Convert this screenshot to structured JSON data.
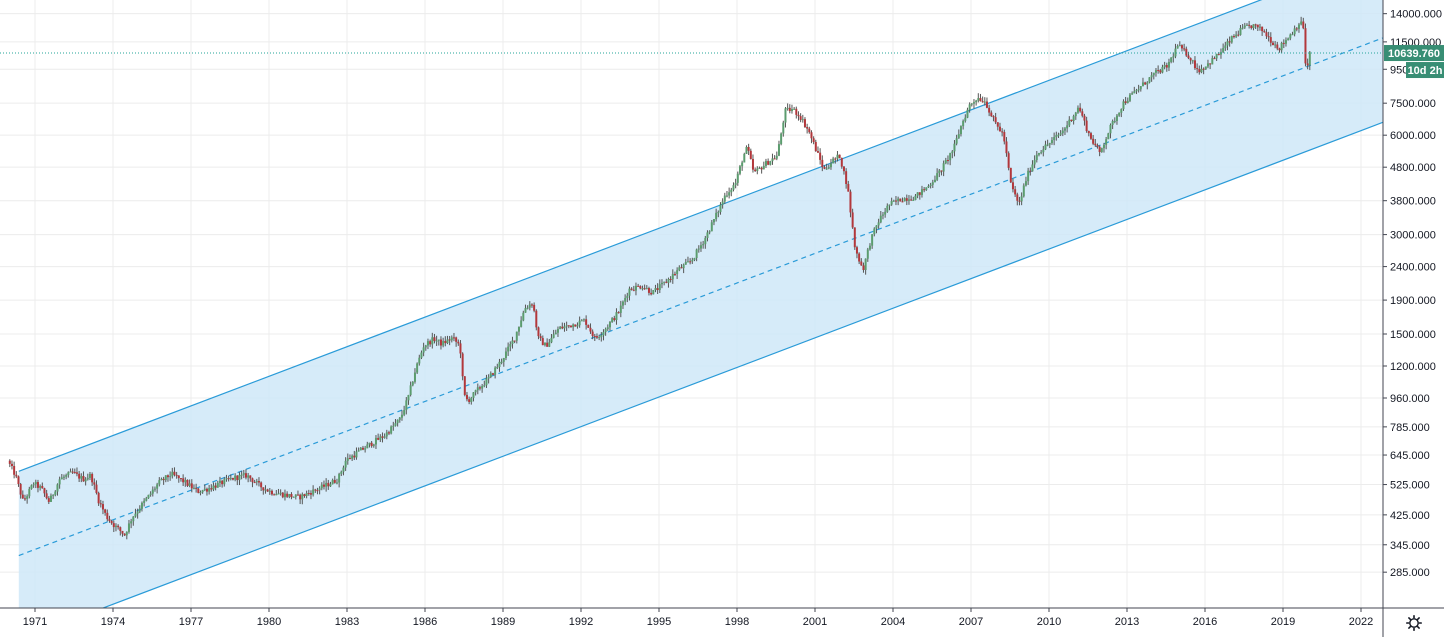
{
  "chart_data": {
    "type": "candlestick",
    "y_scale": "log",
    "ylim": [
      230,
      14500
    ],
    "xlim": [
      1970.3,
      2023.5
    ],
    "y_ticks": [
      {
        "value": 14000,
        "label": "14000.000"
      },
      {
        "value": 11500,
        "label": "11500.000"
      },
      {
        "value": 9500,
        "label": "9500.000"
      },
      {
        "value": 7500,
        "label": "7500.000"
      },
      {
        "value": 6000,
        "label": "6000.000"
      },
      {
        "value": 4800,
        "label": "4800.000"
      },
      {
        "value": 3800,
        "label": "3800.000"
      },
      {
        "value": 3000,
        "label": "3000.000"
      },
      {
        "value": 2400,
        "label": "2400.000"
      },
      {
        "value": 1900,
        "label": "1900.000"
      },
      {
        "value": 1500,
        "label": "1500.000"
      },
      {
        "value": 1200,
        "label": "1200.000"
      },
      {
        "value": 960,
        "label": "960.000"
      },
      {
        "value": 785,
        "label": "785.000"
      },
      {
        "value": 645,
        "label": "645.000"
      },
      {
        "value": 525,
        "label": "525.000"
      },
      {
        "value": 425,
        "label": "425.000"
      },
      {
        "value": 345,
        "label": "345.000"
      },
      {
        "value": 285,
        "label": "285.000"
      }
    ],
    "x_ticks": [
      {
        "value": 1971,
        "label": "1971"
      },
      {
        "value": 1974,
        "label": "1974"
      },
      {
        "value": 1977,
        "label": "1977"
      },
      {
        "value": 1980,
        "label": "1980"
      },
      {
        "value": 1983,
        "label": "1983"
      },
      {
        "value": 1986,
        "label": "1986"
      },
      {
        "value": 1989,
        "label": "1989"
      },
      {
        "value": 1992,
        "label": "1992"
      },
      {
        "value": 1995,
        "label": "1995"
      },
      {
        "value": 1998,
        "label": "1998"
      },
      {
        "value": 2001,
        "label": "2001"
      },
      {
        "value": 2004,
        "label": "2004"
      },
      {
        "value": 2007,
        "label": "2007"
      },
      {
        "value": 2010,
        "label": "2010"
      },
      {
        "value": 2013,
        "label": "2013"
      },
      {
        "value": 2016,
        "label": "2016"
      },
      {
        "value": 2019,
        "label": "2019"
      },
      {
        "value": 2022,
        "label": "2022"
      }
    ],
    "price_path": [
      [
        1970.3,
        620
      ],
      [
        1970.6,
        560
      ],
      [
        1970.9,
        465
      ],
      [
        1971.3,
        530
      ],
      [
        1971.6,
        510
      ],
      [
        1971.9,
        465
      ],
      [
        1972.3,
        545
      ],
      [
        1972.8,
        570
      ],
      [
        1973.2,
        545
      ],
      [
        1973.5,
        560
      ],
      [
        1973.8,
        470
      ],
      [
        1974.1,
        420
      ],
      [
        1974.4,
        395
      ],
      [
        1974.8,
        370
      ],
      [
        1975.1,
        420
      ],
      [
        1975.6,
        470
      ],
      [
        1976.1,
        530
      ],
      [
        1976.6,
        565
      ],
      [
        1977.1,
        535
      ],
      [
        1977.6,
        500
      ],
      [
        1978.0,
        510
      ],
      [
        1978.5,
        530
      ],
      [
        1979.0,
        550
      ],
      [
        1979.5,
        560
      ],
      [
        1980.0,
        520
      ],
      [
        1980.4,
        500
      ],
      [
        1980.9,
        490
      ],
      [
        1981.5,
        480
      ],
      [
        1982.0,
        500
      ],
      [
        1982.5,
        520
      ],
      [
        1983.0,
        545
      ],
      [
        1983.3,
        620
      ],
      [
        1983.8,
        660
      ],
      [
        1984.3,
        700
      ],
      [
        1984.8,
        740
      ],
      [
        1985.4,
        830
      ],
      [
        1985.7,
        960
      ],
      [
        1986.0,
        1180
      ],
      [
        1986.3,
        1380
      ],
      [
        1986.7,
        1450
      ],
      [
        1987.0,
        1400
      ],
      [
        1987.4,
        1460
      ],
      [
        1987.7,
        1380
      ],
      [
        1987.85,
        980
      ],
      [
        1988.0,
        940
      ],
      [
        1988.4,
        1020
      ],
      [
        1988.8,
        1100
      ],
      [
        1989.3,
        1250
      ],
      [
        1989.8,
        1460
      ],
      [
        1990.2,
        1800
      ],
      [
        1990.5,
        1870
      ],
      [
        1990.7,
        1460
      ],
      [
        1991.0,
        1380
      ],
      [
        1991.5,
        1560
      ],
      [
        1992.0,
        1600
      ],
      [
        1992.5,
        1650
      ],
      [
        1992.9,
        1450
      ],
      [
        1993.3,
        1560
      ],
      [
        1993.8,
        1750
      ],
      [
        1994.2,
        2050
      ],
      [
        1994.7,
        2100
      ],
      [
        1995.1,
        2000
      ],
      [
        1995.6,
        2150
      ],
      [
        1996.1,
        2350
      ],
      [
        1996.6,
        2500
      ],
      [
        1997.1,
        2900
      ],
      [
        1997.6,
        3500
      ],
      [
        1997.9,
        3950
      ],
      [
        1998.3,
        4300
      ],
      [
        1998.6,
        5200
      ],
      [
        1998.75,
        5500
      ],
      [
        1999.0,
        4600
      ],
      [
        1999.5,
        4950
      ],
      [
        1999.9,
        5200
      ],
      [
        2000.2,
        7100
      ],
      [
        2000.5,
        7200
      ],
      [
        2000.8,
        6800
      ],
      [
        2001.1,
        6200
      ],
      [
        2001.4,
        5400
      ],
      [
        2001.7,
        4700
      ],
      [
        2002.0,
        5000
      ],
      [
        2002.3,
        5200
      ],
      [
        2002.6,
        4200
      ],
      [
        2002.9,
        2700
      ],
      [
        2003.2,
        2350
      ],
      [
        2003.5,
        2900
      ],
      [
        2003.8,
        3300
      ],
      [
        2004.2,
        3700
      ],
      [
        2004.7,
        3850
      ],
      [
        2005.2,
        3900
      ],
      [
        2005.7,
        4200
      ],
      [
        2006.2,
        4700
      ],
      [
        2006.7,
        5500
      ],
      [
        2007.0,
        6500
      ],
      [
        2007.3,
        7400
      ],
      [
        2007.6,
        7800
      ],
      [
        2007.9,
        7600
      ],
      [
        2008.2,
        6700
      ],
      [
        2008.6,
        6000
      ],
      [
        2008.9,
        4200
      ],
      [
        2009.2,
        3700
      ],
      [
        2009.5,
        4500
      ],
      [
        2009.9,
        5300
      ],
      [
        2010.4,
        5700
      ],
      [
        2010.9,
        6200
      ],
      [
        2011.5,
        7300
      ],
      [
        2011.9,
        6000
      ],
      [
        2012.3,
        5300
      ],
      [
        2012.7,
        6300
      ],
      [
        2013.2,
        7500
      ],
      [
        2013.8,
        8300
      ],
      [
        2014.4,
        9200
      ],
      [
        2014.9,
        9700
      ],
      [
        2015.3,
        11200
      ],
      [
        2015.7,
        10500
      ],
      [
        2016.1,
        9400
      ],
      [
        2016.5,
        9900
      ],
      [
        2016.9,
        10600
      ],
      [
        2017.4,
        11800
      ],
      [
        2017.8,
        12600
      ],
      [
        2018.2,
        12900
      ],
      [
        2018.6,
        12400
      ],
      [
        2018.9,
        11600
      ],
      [
        2019.2,
        11000
      ],
      [
        2019.6,
        12000
      ],
      [
        2020.0,
        13200
      ],
      [
        2020.15,
        12700
      ],
      [
        2020.25,
        8800
      ],
      [
        2020.35,
        10639.76
      ]
    ],
    "channel": {
      "anchor_x": 1970.8,
      "end_x": 2023.5,
      "mid_start": 320,
      "mid_growth_per_year": 0.0689,
      "upper_factor": 1.8,
      "lower_factor": 0.555
    },
    "last_price": 10639.76,
    "last_price_label": "10639.760",
    "countdown_label": "10d 2h",
    "colors": {
      "up": "#26a69a",
      "up_body": "#5b9c6e",
      "down": "#b2373b",
      "wick": "#555555",
      "channel_line": "#2a9bd8",
      "channel_fill": "#cfe8f8",
      "price_line": "#26a69a",
      "price_tag": "#388e74",
      "grid": "#ececec",
      "axis_line": "#434651"
    },
    "grid": true
  },
  "ui": {
    "settings_icon": "gear-icon"
  }
}
